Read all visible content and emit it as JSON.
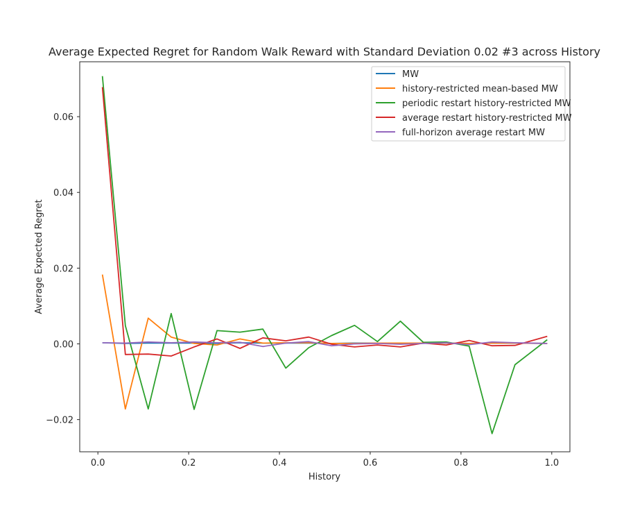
{
  "chart_data": {
    "type": "line",
    "title": "Average Expected Regret for Random Walk Reward with Standard Deviation 0.02 #3 across History",
    "xlabel": "History",
    "ylabel": "Average Expected Regret",
    "xlim": [
      -0.04,
      1.04
    ],
    "ylim": [
      -0.0285,
      0.0745
    ],
    "xticks": [
      0.0,
      0.2,
      0.4,
      0.6,
      0.8,
      1.0
    ],
    "xtick_labels": [
      "0.0",
      "0.2",
      "0.4",
      "0.6",
      "0.8",
      "1.0"
    ],
    "yticks": [
      -0.02,
      0.0,
      0.02,
      0.04,
      0.06
    ],
    "ytick_labels": [
      "−0.02",
      "0.00",
      "0.02",
      "0.04",
      "0.06"
    ],
    "grid": false,
    "legend_position": "top-right",
    "x": [
      0.01,
      0.0605,
      0.111,
      0.1615,
      0.212,
      0.2625,
      0.313,
      0.3635,
      0.414,
      0.4645,
      0.515,
      0.5655,
      0.616,
      0.6665,
      0.717,
      0.7675,
      0.818,
      0.8685,
      0.919,
      0.99
    ],
    "series": [
      {
        "name": "MW",
        "color": "#1f77b4",
        "values": [
          0.0003,
          0.0001,
          0.0002,
          0.0002,
          0.0002,
          0.0001,
          0.0003,
          0.0002,
          0.0002,
          0.0002,
          0.0001,
          0.0002,
          0.0002,
          0.0001,
          0.0002,
          0.0002,
          0.0001,
          0.0002,
          0.0002,
          0.0001
        ]
      },
      {
        "name": "history-restricted mean-based MW",
        "color": "#ff7f0e",
        "values": [
          0.0183,
          -0.0172,
          0.0068,
          0.0018,
          0.0001,
          -0.0003,
          0.0013,
          0.0002,
          0.0003,
          0.0003,
          0.0001,
          0.0001,
          0.0002,
          0.0002,
          0.0002,
          0.0002,
          0.0001,
          0.0002,
          0.0002,
          0.0001
        ]
      },
      {
        "name": "periodic restart history-restricted MW",
        "color": "#2ca02c",
        "values": [
          0.0707,
          0.0048,
          -0.0172,
          0.008,
          -0.0173,
          0.0035,
          0.0031,
          0.0039,
          -0.0064,
          -0.001,
          0.0022,
          0.0049,
          0.0006,
          0.006,
          0.0004,
          0.0005,
          -0.0006,
          -0.0237,
          -0.0055,
          0.0011
        ]
      },
      {
        "name": "average restart history-restricted MW",
        "color": "#d62728",
        "values": [
          0.0678,
          -0.0028,
          -0.0027,
          -0.0032,
          -0.0008,
          0.0013,
          -0.0012,
          0.0016,
          0.0008,
          0.0018,
          -0.0001,
          -0.0008,
          -0.0003,
          -0.0008,
          0.0002,
          -0.0003,
          0.0009,
          -0.0005,
          -0.0004,
          0.002
        ]
      },
      {
        "name": "full-horizon average restart MW",
        "color": "#9467bd",
        "values": [
          0.0003,
          0.0002,
          0.0005,
          0.0003,
          0.0005,
          0.0003,
          0.0004,
          -0.0007,
          0.0002,
          0.0006,
          -0.0005,
          0.0,
          0.0001,
          -0.0001,
          0.0001,
          0.0003,
          -0.0002,
          0.0005,
          0.0003,
          0.0001
        ]
      }
    ]
  }
}
